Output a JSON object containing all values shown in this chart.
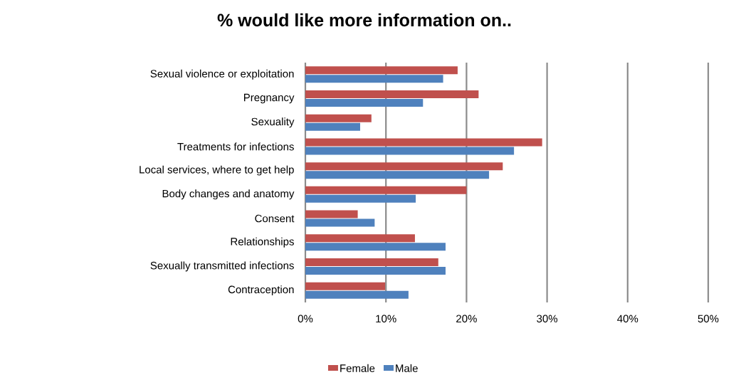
{
  "chart_data": {
    "type": "bar",
    "orientation": "horizontal",
    "title": "% would like more information on..",
    "categories": [
      "Sexual violence or exploitation",
      "Pregnancy",
      "Sexuality",
      "Treatments for infections",
      "Local services, where to get help",
      "Body changes and anatomy",
      "Consent",
      "Relationships",
      "Sexually transmitted infections",
      "Contraception"
    ],
    "series": [
      {
        "name": "Female",
        "color": "#c0504d",
        "values": [
          18.9,
          21.5,
          8.2,
          29.4,
          24.5,
          20.0,
          6.5,
          13.6,
          16.5,
          9.9
        ]
      },
      {
        "name": "Male",
        "color": "#4f81bd",
        "values": [
          17.1,
          14.6,
          6.8,
          25.9,
          22.8,
          13.7,
          8.6,
          17.4,
          17.4,
          12.8
        ]
      }
    ],
    "xlim": [
      0,
      50
    ],
    "xticks": [
      {
        "value": 0,
        "label": "0%"
      },
      {
        "value": 10,
        "label": "10%"
      },
      {
        "value": 20,
        "label": "20%"
      },
      {
        "value": 30,
        "label": "30%"
      },
      {
        "value": 40,
        "label": "40%"
      },
      {
        "value": 50,
        "label": "50%"
      }
    ],
    "grid": "x",
    "legend": "bottom"
  }
}
